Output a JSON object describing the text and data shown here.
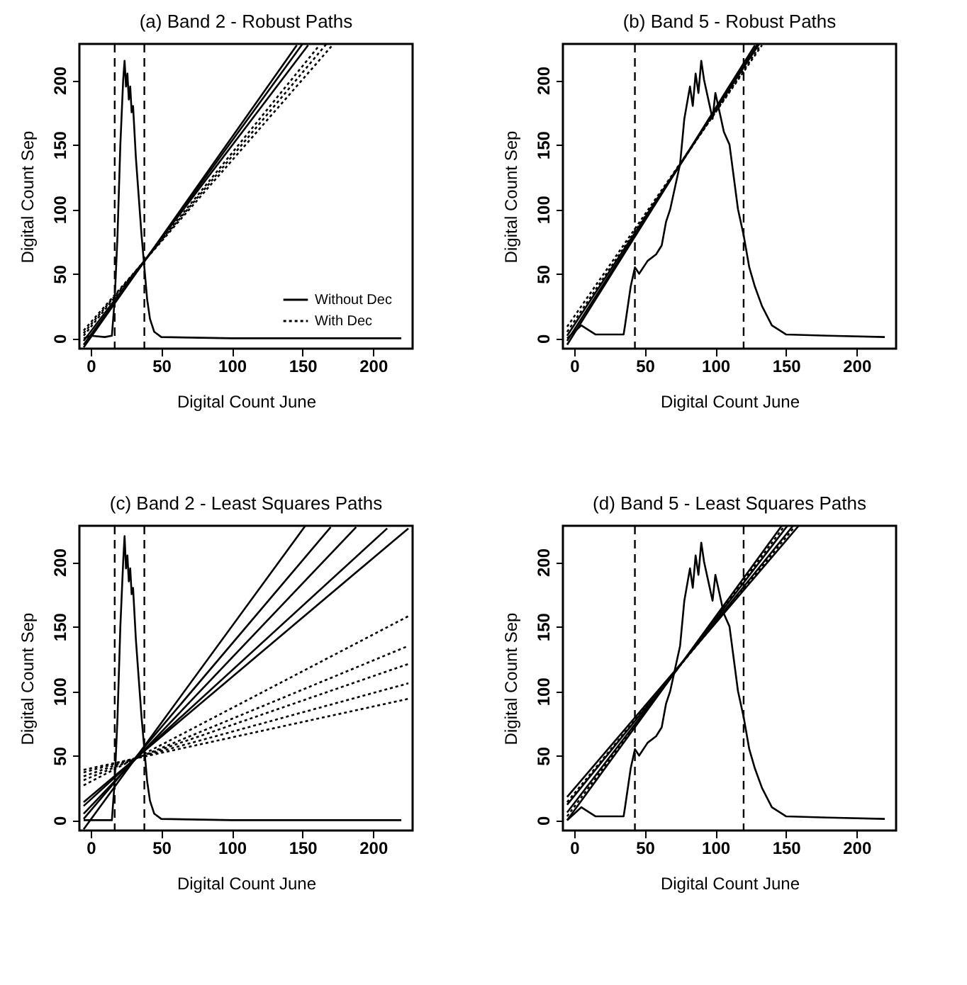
{
  "chart_data": [
    {
      "type": "line",
      "title": "(a) Band 2 - Robust Paths",
      "xlabel": "Digital Count June",
      "ylabel": "Digital Count Sep",
      "xlim": [
        -8,
        228
      ],
      "ylim": [
        -8,
        228
      ],
      "xticks": [
        0,
        50,
        100,
        150,
        200
      ],
      "yticks": [
        0,
        50,
        100,
        150,
        200
      ],
      "grid": false,
      "legend": "bottom right",
      "ref_lines": [
        {
          "axis": "x",
          "value": 17,
          "line_style": "dashed"
        },
        {
          "axis": "x",
          "value": 38,
          "line_style": "dashed"
        }
      ],
      "series": [
        {
          "color": "#000000",
          "line_style": "solid",
          "x": [
            -5,
            0,
            10,
            15,
            17,
            19,
            21,
            23,
            24,
            25,
            26,
            27,
            28,
            29,
            30,
            32,
            34,
            36,
            38,
            40,
            42,
            45,
            50,
            100,
            220
          ],
          "values": [
            0,
            2,
            1,
            2,
            30,
            80,
            150,
            200,
            215,
            195,
            205,
            185,
            195,
            175,
            180,
            140,
            110,
            80,
            55,
            30,
            15,
            5,
            1,
            0,
            0
          ]
        },
        {
          "name": "Without Dec",
          "color": "#000000",
          "line_style": "solid",
          "x": [
            -5,
            146
          ],
          "values": [
            -7,
            227
          ]
        },
        {
          "color": "#000000",
          "line_style": "solid",
          "x": [
            -5,
            150
          ],
          "values": [
            -5,
            228
          ]
        },
        {
          "color": "#000000",
          "line_style": "solid",
          "x": [
            -5,
            154
          ],
          "values": [
            -2,
            227
          ]
        },
        {
          "name": "With Dec",
          "color": "#000000",
          "line_style": "dotted",
          "x": [
            -5,
            162
          ],
          "values": [
            2,
            227
          ]
        },
        {
          "color": "#000000",
          "line_style": "dotted",
          "x": [
            -5,
            167
          ],
          "values": [
            4,
            228
          ]
        },
        {
          "color": "#000000",
          "line_style": "dotted",
          "x": [
            -5,
            172
          ],
          "values": [
            6,
            228
          ]
        }
      ]
    },
    {
      "type": "line",
      "title": "(b) Band 5 - Robust Paths",
      "xlabel": "Digital Count June",
      "ylabel": "Digital Count Sep",
      "xlim": [
        -8,
        228
      ],
      "ylim": [
        -8,
        228
      ],
      "xticks": [
        0,
        50,
        100,
        150,
        200
      ],
      "yticks": [
        0,
        50,
        100,
        150,
        200
      ],
      "grid": false,
      "ref_lines": [
        {
          "axis": "x",
          "value": 43,
          "line_style": "dashed"
        },
        {
          "axis": "x",
          "value": 120,
          "line_style": "dashed"
        }
      ],
      "series": [
        {
          "color": "#000000",
          "line_style": "solid",
          "x": [
            -5,
            5,
            15,
            35,
            36,
            40,
            43,
            46,
            52,
            58,
            62,
            65,
            68,
            72,
            75,
            78,
            82,
            84,
            86,
            88,
            90,
            92,
            95,
            98,
            100,
            103,
            106,
            110,
            116,
            120,
            124,
            128,
            133,
            140,
            150,
            180,
            220
          ],
          "values": [
            0,
            10,
            3,
            3,
            10,
            40,
            55,
            50,
            60,
            65,
            72,
            90,
            100,
            120,
            135,
            170,
            195,
            180,
            205,
            190,
            215,
            200,
            185,
            170,
            190,
            175,
            160,
            150,
            100,
            80,
            55,
            40,
            25,
            10,
            3,
            2,
            1
          ]
        },
        {
          "color": "#000000",
          "line_style": "solid",
          "x": [
            -5,
            128
          ],
          "values": [
            -5,
            227
          ]
        },
        {
          "color": "#000000",
          "line_style": "solid",
          "x": [
            -5,
            130
          ],
          "values": [
            -2,
            228
          ]
        },
        {
          "color": "#000000",
          "line_style": "solid",
          "x": [
            -5,
            131
          ],
          "values": [
            2,
            228
          ]
        },
        {
          "color": "#000000",
          "line_style": "dotted",
          "x": [
            -5,
            132
          ],
          "values": [
            5,
            227
          ]
        },
        {
          "color": "#000000",
          "line_style": "dotted",
          "x": [
            -5,
            133
          ],
          "values": [
            9,
            227
          ]
        }
      ]
    },
    {
      "type": "line",
      "title": "(c) Band 2 - Least Squares Paths",
      "xlabel": "Digital Count June",
      "ylabel": "Digital Count Sep",
      "xlim": [
        -8,
        228
      ],
      "ylim": [
        -8,
        228
      ],
      "xticks": [
        0,
        50,
        100,
        150,
        200
      ],
      "yticks": [
        0,
        50,
        100,
        150,
        200
      ],
      "grid": false,
      "ref_lines": [
        {
          "axis": "x",
          "value": 17,
          "line_style": "dashed"
        },
        {
          "axis": "x",
          "value": 38,
          "line_style": "dashed"
        }
      ],
      "series": [
        {
          "color": "#000000",
          "line_style": "solid",
          "x": [
            -5,
            0,
            10,
            15,
            17,
            19,
            21,
            23,
            24,
            25,
            26,
            27,
            28,
            29,
            30,
            32,
            34,
            36,
            38,
            40,
            42,
            45,
            50,
            100,
            220
          ],
          "values": [
            0,
            0,
            0,
            0,
            30,
            80,
            150,
            200,
            220,
            195,
            205,
            185,
            195,
            175,
            180,
            140,
            110,
            80,
            55,
            30,
            15,
            5,
            1,
            0,
            0
          ]
        },
        {
          "color": "#000000",
          "line_style": "solid",
          "x": [
            -5,
            152
          ],
          "values": [
            -7,
            228
          ]
        },
        {
          "color": "#000000",
          "line_style": "solid",
          "x": [
            -5,
            170
          ],
          "values": [
            1,
            227
          ]
        },
        {
          "color": "#000000",
          "line_style": "solid",
          "x": [
            -5,
            188
          ],
          "values": [
            5,
            227
          ]
        },
        {
          "color": "#000000",
          "line_style": "solid",
          "x": [
            -5,
            210
          ],
          "values": [
            11,
            226
          ]
        },
        {
          "color": "#000000",
          "line_style": "solid",
          "x": [
            -5,
            225
          ],
          "values": [
            14,
            226
          ]
        },
        {
          "color": "#000000",
          "line_style": "dotted",
          "x": [
            -5,
            225
          ],
          "values": [
            27,
            158
          ]
        },
        {
          "color": "#000000",
          "line_style": "dotted",
          "x": [
            -5,
            225
          ],
          "values": [
            31,
            135
          ]
        },
        {
          "color": "#000000",
          "line_style": "dotted",
          "x": [
            -5,
            225
          ],
          "values": [
            34,
            121
          ]
        },
        {
          "color": "#000000",
          "line_style": "dotted",
          "x": [
            -5,
            225
          ],
          "values": [
            37,
            106
          ]
        },
        {
          "color": "#000000",
          "line_style": "dotted",
          "x": [
            -5,
            225
          ],
          "values": [
            39,
            94
          ]
        }
      ]
    },
    {
      "type": "line",
      "title": "(d) Band 5 - Least Squares Paths",
      "xlabel": "Digital Count June",
      "ylabel": "Digital Count Sep",
      "xlim": [
        -8,
        228
      ],
      "ylim": [
        -8,
        228
      ],
      "xticks": [
        0,
        50,
        100,
        150,
        200
      ],
      "yticks": [
        0,
        50,
        100,
        150,
        200
      ],
      "grid": false,
      "ref_lines": [
        {
          "axis": "x",
          "value": 43,
          "line_style": "dashed"
        },
        {
          "axis": "x",
          "value": 120,
          "line_style": "dashed"
        }
      ],
      "series": [
        {
          "color": "#000000",
          "line_style": "solid",
          "x": [
            -5,
            5,
            15,
            35,
            36,
            40,
            43,
            46,
            52,
            58,
            62,
            65,
            68,
            72,
            75,
            78,
            82,
            84,
            86,
            88,
            90,
            92,
            95,
            98,
            100,
            103,
            106,
            110,
            116,
            120,
            124,
            128,
            133,
            140,
            150,
            180,
            220
          ],
          "values": [
            0,
            10,
            3,
            3,
            10,
            40,
            55,
            50,
            60,
            65,
            72,
            90,
            100,
            120,
            135,
            170,
            195,
            180,
            205,
            190,
            215,
            200,
            185,
            170,
            190,
            175,
            160,
            150,
            100,
            80,
            55,
            40,
            25,
            10,
            3,
            2,
            1
          ]
        },
        {
          "color": "#000000",
          "line_style": "solid",
          "x": [
            -5,
            147
          ],
          "values": [
            0,
            228
          ]
        },
        {
          "color": "#000000",
          "line_style": "solid",
          "x": [
            -5,
            151
          ],
          "values": [
            6,
            228
          ]
        },
        {
          "color": "#000000",
          "line_style": "solid",
          "x": [
            -5,
            155
          ],
          "values": [
            12,
            228
          ]
        },
        {
          "color": "#000000",
          "line_style": "solid",
          "x": [
            -5,
            159
          ],
          "values": [
            18,
            228
          ]
        },
        {
          "color": "#000000",
          "line_style": "dotted",
          "x": [
            -5,
            149
          ],
          "values": [
            3,
            228
          ]
        },
        {
          "color": "#000000",
          "line_style": "dotted",
          "x": [
            -5,
            156
          ],
          "values": [
            14,
            227
          ]
        }
      ]
    }
  ]
}
